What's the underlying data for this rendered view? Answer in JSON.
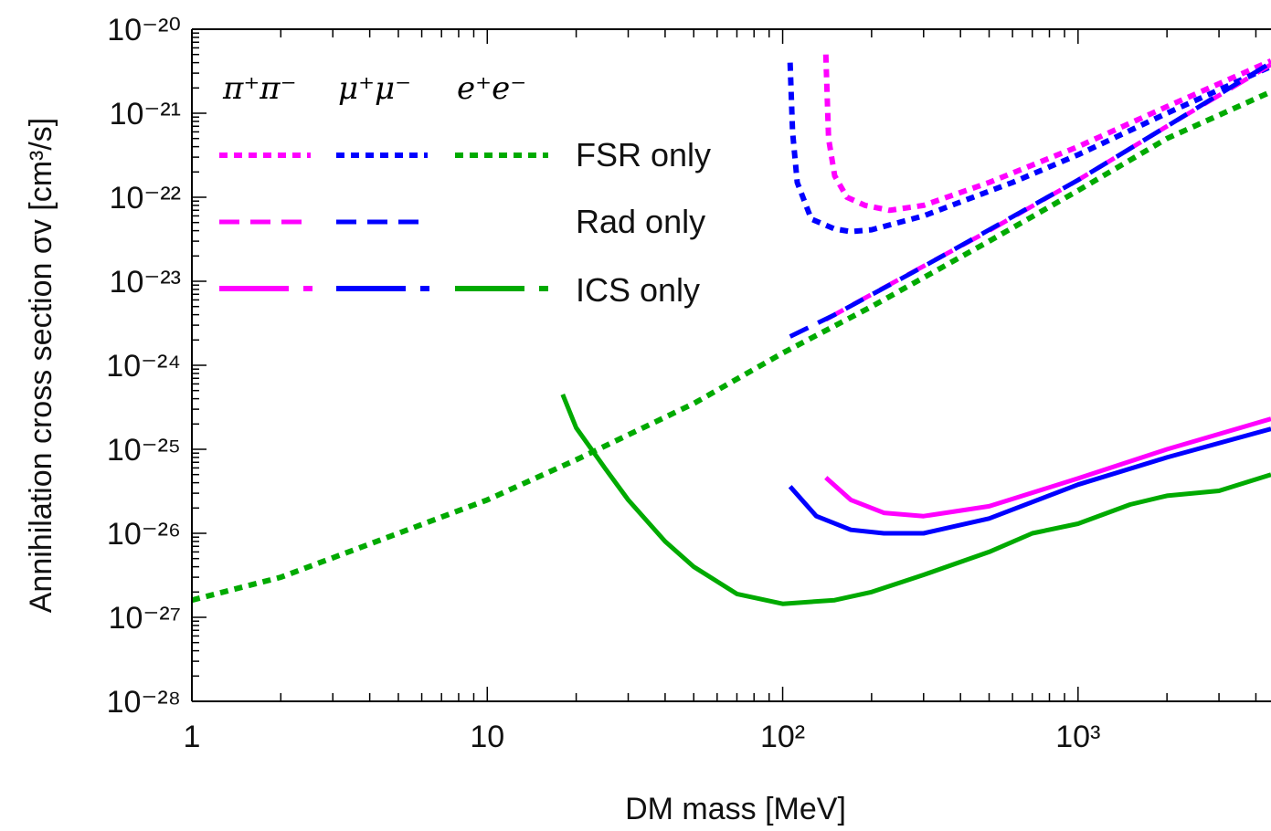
{
  "chart_data": {
    "type": "line",
    "xlabel": "DM mass [MeV]",
    "ylabel": "Annihilation cross section σv [cm³/s]",
    "xscale": "log",
    "yscale": "log",
    "xlim": [
      1,
      4500
    ],
    "ylim": [
      1e-28,
      1e-20
    ],
    "grid": false,
    "legend_position": "top-left",
    "x_tick_labels": [
      "1",
      "10",
      "10²",
      "10³"
    ],
    "x_tick_values": [
      1,
      10,
      100,
      1000
    ],
    "y_tick_labels": [
      "10⁻²⁸",
      "10⁻²⁷",
      "10⁻²⁶",
      "10⁻²⁵",
      "10⁻²⁴",
      "10⁻²³",
      "10⁻²²",
      "10⁻²¹",
      "10⁻²⁰"
    ],
    "y_tick_values": [
      1e-28,
      1e-27,
      1e-26,
      1e-25,
      1e-24,
      1e-23,
      1e-22,
      1e-21,
      1e-20
    ],
    "species_labels": [
      {
        "text": "π⁺π⁻",
        "color": "#ff00ff"
      },
      {
        "text": "μ⁺μ⁻",
        "color": "#0000ff"
      },
      {
        "text": "e⁺e⁻",
        "color": "#00aa00"
      }
    ],
    "legend": [
      {
        "label": "FSR only",
        "style": "dotted"
      },
      {
        "label": "Rad only",
        "style": "dashed"
      },
      {
        "label": "ICS only",
        "style": "long-dashed"
      }
    ],
    "colors": {
      "pipi": "#ff00ff",
      "mumu": "#0000ff",
      "ee": "#00aa00",
      "axis": "#000000"
    },
    "series": [
      {
        "channel": "pipi",
        "process": "FSR",
        "style": "dotted",
        "color": "#ff00ff",
        "points": [
          [
            140,
            5e-21
          ],
          [
            143,
            5e-22
          ],
          [
            150,
            1.8e-22
          ],
          [
            165,
            1e-22
          ],
          [
            190,
            8e-23
          ],
          [
            230,
            7e-23
          ],
          [
            300,
            8e-23
          ],
          [
            500,
            1.5e-22
          ],
          [
            1000,
            4e-22
          ],
          [
            2000,
            1.2e-21
          ],
          [
            4500,
            4.2e-21
          ]
        ]
      },
      {
        "channel": "mumu",
        "process": "FSR",
        "style": "dotted",
        "color": "#0000ff",
        "points": [
          [
            106,
            4e-21
          ],
          [
            108,
            6e-22
          ],
          [
            112,
            1.5e-22
          ],
          [
            125,
            5.5e-23
          ],
          [
            150,
            4.2e-23
          ],
          [
            170,
            3.9e-23
          ],
          [
            200,
            4.1e-23
          ],
          [
            300,
            6e-23
          ],
          [
            600,
            1.5e-22
          ],
          [
            1000,
            3.2e-22
          ],
          [
            2000,
            1e-21
          ],
          [
            4500,
            3.6e-21
          ]
        ]
      },
      {
        "channel": "ee",
        "process": "FSR",
        "style": "dotted",
        "color": "#00aa00",
        "points": [
          [
            1,
            1.6e-27
          ],
          [
            2,
            3e-27
          ],
          [
            5,
            1e-26
          ],
          [
            10,
            2.5e-26
          ],
          [
            20,
            7.5e-26
          ],
          [
            50,
            3.5e-25
          ],
          [
            100,
            1.4e-24
          ],
          [
            200,
            5e-24
          ],
          [
            500,
            3e-23
          ],
          [
            1000,
            1.2e-22
          ],
          [
            2000,
            5e-22
          ],
          [
            4500,
            1.8e-21
          ]
        ]
      },
      {
        "channel": "pipi",
        "process": "Rad",
        "style": "dashed",
        "color": "#ff00ff",
        "points": [
          [
            140,
            3.5e-24
          ],
          [
            200,
            7e-24
          ],
          [
            500,
            4e-23
          ],
          [
            1000,
            1.6e-22
          ],
          [
            2000,
            7e-22
          ],
          [
            4500,
            3.8e-21
          ]
        ]
      },
      {
        "channel": "mumu",
        "process": "Rad",
        "style": "dashed",
        "color": "#0000ff",
        "points": [
          [
            106,
            2.2e-24
          ],
          [
            150,
            4e-24
          ],
          [
            300,
            1.5e-23
          ],
          [
            1000,
            1.6e-22
          ],
          [
            2000,
            7e-22
          ],
          [
            4500,
            4e-21
          ]
        ]
      },
      {
        "channel": "pipi",
        "process": "ICS",
        "style": "long-dashed",
        "color": "#ff00ff",
        "points": [
          [
            140,
            4.6e-26
          ],
          [
            170,
            2.5e-26
          ],
          [
            220,
            1.75e-26
          ],
          [
            300,
            1.6e-26
          ],
          [
            500,
            2.1e-26
          ],
          [
            1000,
            4.5e-26
          ],
          [
            2000,
            1e-25
          ],
          [
            4500,
            2.3e-25
          ]
        ]
      },
      {
        "channel": "mumu",
        "process": "ICS",
        "style": "long-dashed",
        "color": "#0000ff",
        "points": [
          [
            106,
            3.6e-26
          ],
          [
            130,
            1.6e-26
          ],
          [
            170,
            1.1e-26
          ],
          [
            220,
            1e-26
          ],
          [
            300,
            1e-26
          ],
          [
            500,
            1.5e-26
          ],
          [
            1000,
            3.8e-26
          ],
          [
            2000,
            8e-26
          ],
          [
            4500,
            1.75e-25
          ]
        ]
      },
      {
        "channel": "ee",
        "process": "ICS",
        "style": "long-dashed",
        "color": "#00aa00",
        "points": [
          [
            18,
            4.5e-25
          ],
          [
            20,
            1.8e-25
          ],
          [
            25,
            6e-26
          ],
          [
            30,
            2.5e-26
          ],
          [
            40,
            8e-27
          ],
          [
            50,
            4e-27
          ],
          [
            70,
            1.9e-27
          ],
          [
            100,
            1.45e-27
          ],
          [
            150,
            1.6e-27
          ],
          [
            200,
            2e-27
          ],
          [
            300,
            3.2e-27
          ],
          [
            500,
            6e-27
          ],
          [
            700,
            1e-26
          ],
          [
            1000,
            1.3e-26
          ],
          [
            1500,
            2.2e-26
          ],
          [
            2000,
            2.8e-26
          ],
          [
            3000,
            3.2e-26
          ],
          [
            4500,
            5e-26
          ]
        ]
      }
    ]
  }
}
